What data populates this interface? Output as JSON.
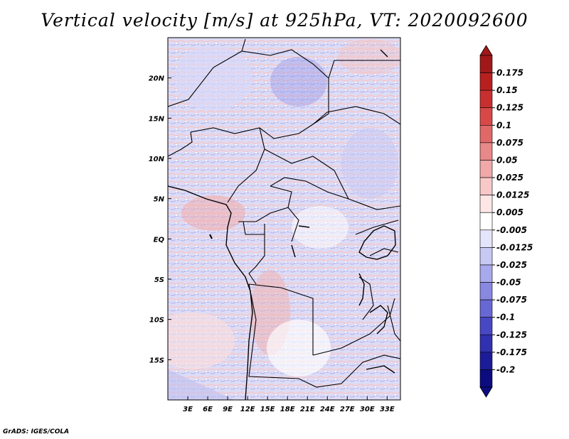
{
  "title": "Vertical velocity [m/s] at 925hPa, VT: 2020092600",
  "credit": "GrADS: IGES/COLA",
  "map": {
    "lon_range": [
      0,
      35
    ],
    "lat_range": [
      -20,
      25
    ],
    "y_ticks": [
      "20N",
      "15N",
      "10N",
      "5N",
      "EQ",
      "5S",
      "10S",
      "15S"
    ],
    "y_tick_values": [
      20,
      15,
      10,
      5,
      0,
      -5,
      -10,
      -15
    ],
    "x_ticks": [
      "3E",
      "6E",
      "9E",
      "12E",
      "15E",
      "18E",
      "21E",
      "24E",
      "27E",
      "30E",
      "33E"
    ],
    "x_tick_values": [
      3,
      6,
      9,
      12,
      15,
      18,
      21,
      24,
      27,
      30,
      33
    ]
  },
  "colorbar": {
    "labels": [
      "0.175",
      "0.15",
      "0.125",
      "0.1",
      "0.075",
      "0.05",
      "0.025",
      "0.0125",
      "0.005",
      "-0.005",
      "-0.0125",
      "-0.025",
      "-0.05",
      "-0.075",
      "-0.1",
      "-0.125",
      "-0.175",
      "-0.2"
    ],
    "colors": [
      "#a01818",
      "#b82020",
      "#c83030",
      "#d84848",
      "#e06868",
      "#e88888",
      "#f0a8a8",
      "#f8c8c8",
      "#fde6e6",
      "#ffffff",
      "#e4e4fb",
      "#c8c8f4",
      "#a8a8ec",
      "#8888e0",
      "#6868d4",
      "#4848c4",
      "#3030b0",
      "#1c1c98",
      "#0c0c80"
    ],
    "top_color": "#a01818",
    "bottom_color": "#0c0c80"
  }
}
